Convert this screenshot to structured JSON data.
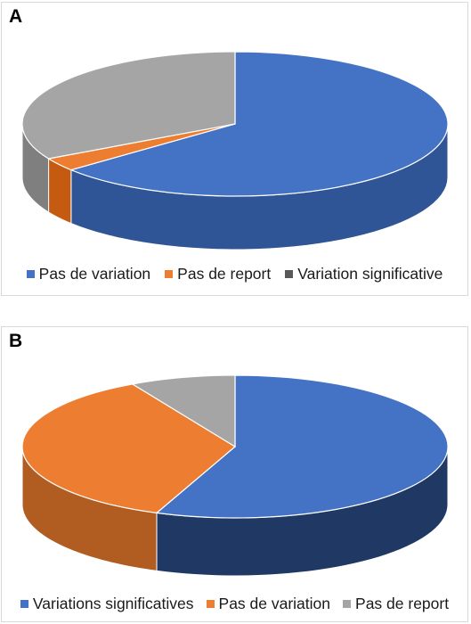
{
  "chart_data": [
    {
      "panel_label": "A",
      "type": "pie",
      "style": "3d",
      "legend_position": "bottom",
      "slices": [
        {
          "name": "Pas de variation",
          "value": 64,
          "color": "#4472C4",
          "side_color": "#2F5597"
        },
        {
          "name": "Pas de report",
          "value": 3,
          "color": "#ED7D31",
          "side_color": "#C55A11"
        },
        {
          "name": "Variation significative",
          "value": 33,
          "color": "#A5A5A5",
          "side_color": "#7F7F7F"
        }
      ]
    },
    {
      "panel_label": "B",
      "type": "pie",
      "style": "3d",
      "legend_position": "bottom",
      "slices": [
        {
          "name": "Variations significatives",
          "value": 56,
          "color": "#4472C4",
          "side_color": "#203864"
        },
        {
          "name": "Pas de variation",
          "value": 36,
          "color": "#ED7D31",
          "side_color": "#B15D22"
        },
        {
          "name": "Pas de report",
          "value": 8,
          "color": "#A5A5A5",
          "side_color": "#7F7F7F"
        }
      ]
    }
  ]
}
